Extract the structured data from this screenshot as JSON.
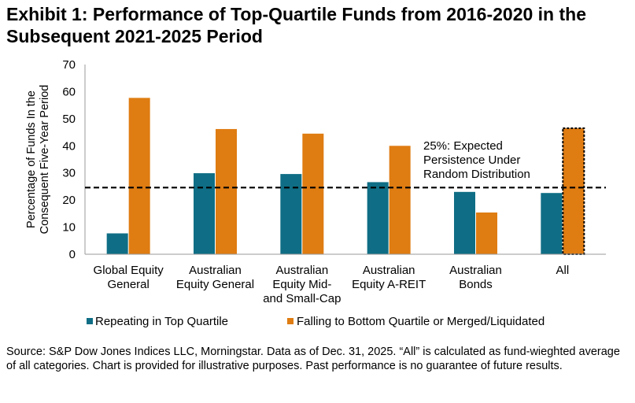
{
  "title": "Exhibit 1: Performance of Top-Quartile Funds from 2016-2020 in the Subsequent 2021-2025 Period",
  "source": "Source: S&P Dow Jones Indices LLC, Morningstar.  Data as of Dec. 31, 2025.  “All” is calculated as fund-wieghted average of all categories.  Chart is provided for illustrative purposes.  Past performance is no guarantee of future results.",
  "chart_data": {
    "type": "bar",
    "ylabel": [
      "Percentage of Funds In the",
      "Consequent Five-Year Period"
    ],
    "ylim": [
      0,
      70
    ],
    "yticks": [
      0,
      10,
      20,
      30,
      40,
      50,
      60,
      70
    ],
    "grid": false,
    "legend_position": "bottom",
    "categories": [
      [
        "Global Equity",
        "General"
      ],
      [
        "Australian",
        "Equity General"
      ],
      [
        "Australian",
        "Equity Mid-",
        "and Small-Cap"
      ],
      [
        "Australian",
        "Equity A-REIT"
      ],
      [
        "Australian",
        "Bonds"
      ],
      [
        "All"
      ]
    ],
    "series": [
      {
        "name": "Repeating in Top Quartile",
        "color": "#0f6e85",
        "values": [
          7.7,
          29.9,
          29.6,
          26.6,
          23.0,
          22.6
        ]
      },
      {
        "name": "Falling to Bottom Quartile or Merged/Liquidated",
        "color": "#df7c12",
        "values": [
          57.7,
          46.2,
          44.5,
          40.0,
          15.4,
          46.5
        ]
      }
    ],
    "reference_line": {
      "value": 24.6,
      "label": [
        "25%: Expected",
        "Persistence Under",
        "Random Distribution"
      ]
    },
    "highlighted_bar": {
      "category_index": 5,
      "series_index": 1
    }
  }
}
